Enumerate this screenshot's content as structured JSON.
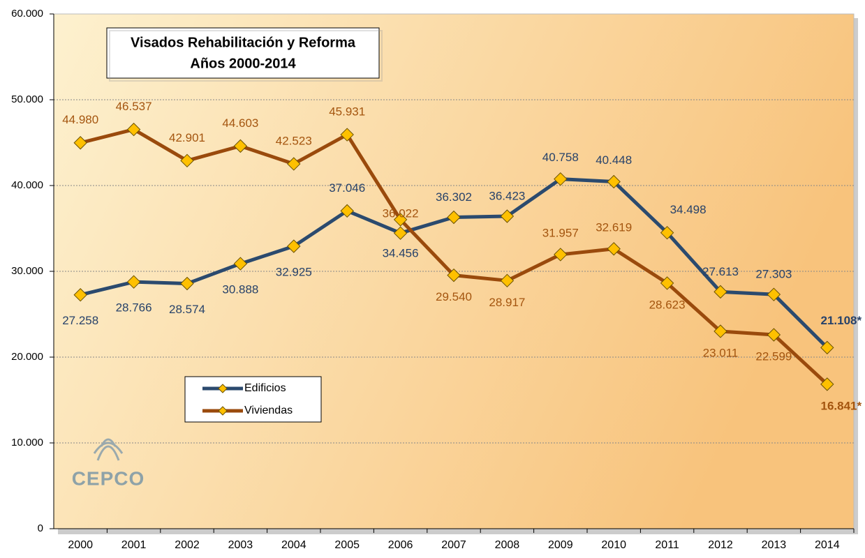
{
  "chart_data": {
    "type": "line",
    "title": "Visados Rehabilitación y Reforma",
    "subtitle": "Años 2000-2014",
    "logo": "CEPCO",
    "categories": [
      "2000",
      "2001",
      "2002",
      "2003",
      "2004",
      "2005",
      "2006",
      "2007",
      "2008",
      "2009",
      "2010",
      "2011",
      "2012",
      "2013",
      "2014"
    ],
    "series": [
      {
        "name": "Edificios",
        "color": "#2b4a6e",
        "label_color": "#27426a",
        "values": [
          27258,
          28766,
          28574,
          30888,
          32925,
          37046,
          34456,
          36302,
          36423,
          40758,
          40448,
          34498,
          27613,
          27303,
          21108
        ],
        "value_labels": [
          "27.258",
          "28.766",
          "28.574",
          "30.888",
          "32.925",
          "37.046",
          "34.456",
          "36.302",
          "36.423",
          "40.758",
          "40.448",
          "34.498",
          "27.613",
          "27.303",
          "21.108*"
        ]
      },
      {
        "name": "Viviendas",
        "color": "#9a4a0c",
        "label_color": "#a4550f",
        "values": [
          44980,
          46537,
          42901,
          44603,
          42523,
          45931,
          36022,
          29540,
          28917,
          31957,
          32619,
          28623,
          23011,
          22599,
          16841
        ],
        "value_labels": [
          "44.980",
          "46.537",
          "42.901",
          "44.603",
          "42.523",
          "45.931",
          "36.022",
          "29.540",
          "28.917",
          "31.957",
          "32.619",
          "28.623",
          "23.011",
          "22.599",
          "16.841*"
        ]
      }
    ],
    "marker_color": "#ffc000",
    "ylim": [
      0,
      60000
    ],
    "yticks": [
      0,
      {
        "value": 10000,
        "label": "10.000"
      },
      {
        "value": 20000,
        "label": "20.000"
      },
      {
        "value": 30000,
        "label": "30.000"
      },
      {
        "value": 40000,
        "label": "40.000"
      },
      {
        "value": 50000,
        "label": "50.000"
      },
      {
        "value": 60000,
        "label": "60.000"
      }
    ],
    "grid": true
  }
}
